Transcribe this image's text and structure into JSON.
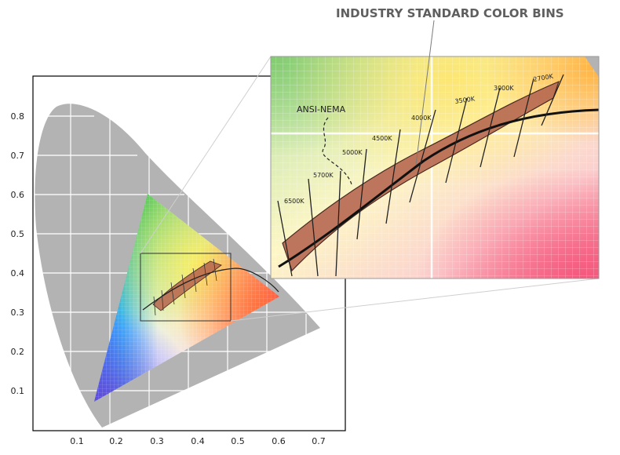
{
  "callout_title": "INDUSTRY STANDARD COLOR BINS",
  "y_ticks": [
    "0.8",
    "0.7",
    "0.6",
    "0.5",
    "0.4",
    "0.3",
    "0.2",
    "0.1"
  ],
  "x_ticks": [
    "0.1",
    "0.2",
    "0.3",
    "0.4",
    "0.5",
    "0.6",
    "0.7"
  ],
  "zoom_labels": {
    "ansi": "ANSI-NEMA",
    "k6500": "6500K",
    "k5700": "5700K",
    "k5000": "5000K",
    "k4500": "4500K",
    "k4000": "4000K",
    "k3500": "3500K",
    "k3000": "3000K",
    "k2700": "2700K"
  },
  "colors": {
    "locus_gray": "#b3b3b3",
    "bin_fill": "#b4644e",
    "bin_outline": "#4a2a20",
    "blackbody_curve": "#111111",
    "callout_text": "#5f5f5f"
  }
}
